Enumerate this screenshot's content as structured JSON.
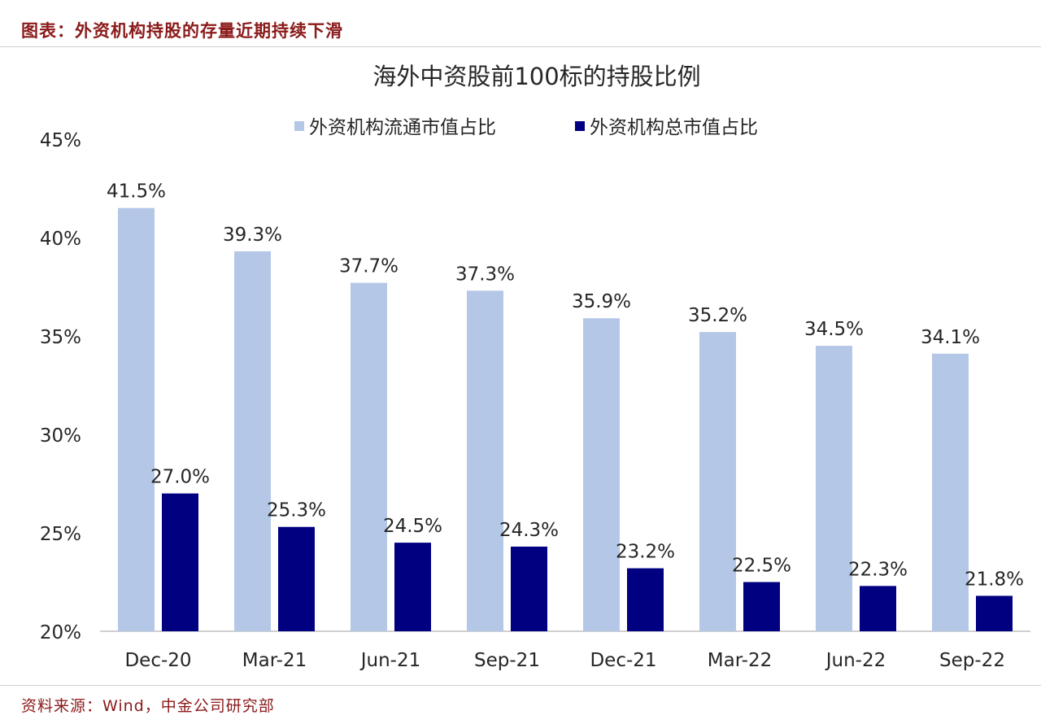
{
  "figure": {
    "heading": "图表：外资机构持股的存量近期持续下滑",
    "source": "资料来源：Wind，中金公司研究部"
  },
  "chart_data": {
    "type": "bar",
    "title": "海外中资股前100标的持股比例",
    "xlabel": "",
    "ylabel": "",
    "categories": [
      "Dec-20",
      "Mar-21",
      "Jun-21",
      "Sep-21",
      "Dec-21",
      "Mar-22",
      "Jun-22",
      "Sep-22"
    ],
    "series": [
      {
        "name": "外资机构流通市值占比",
        "color": "#b4c7e7",
        "values": [
          41.5,
          39.3,
          37.7,
          37.3,
          35.9,
          35.2,
          34.5,
          34.1
        ],
        "labels": [
          "41.5%",
          "39.3%",
          "37.7%",
          "37.3%",
          "35.9%",
          "35.2%",
          "34.5%",
          "34.1%"
        ]
      },
      {
        "name": "外资机构总市值占比",
        "color": "#000080",
        "values": [
          27.0,
          25.3,
          24.5,
          24.3,
          23.2,
          22.5,
          22.3,
          21.8
        ],
        "labels": [
          "27.0%",
          "25.3%",
          "24.5%",
          "24.3%",
          "23.2%",
          "22.5%",
          "22.3%",
          "21.8%"
        ]
      }
    ],
    "ylim": [
      20,
      45
    ],
    "yticks": [
      20,
      25,
      30,
      35,
      40,
      45
    ],
    "ytick_labels": [
      "20%",
      "25%",
      "30%",
      "35%",
      "40%",
      "45%"
    ],
    "grid": false,
    "legend": "top-center"
  }
}
